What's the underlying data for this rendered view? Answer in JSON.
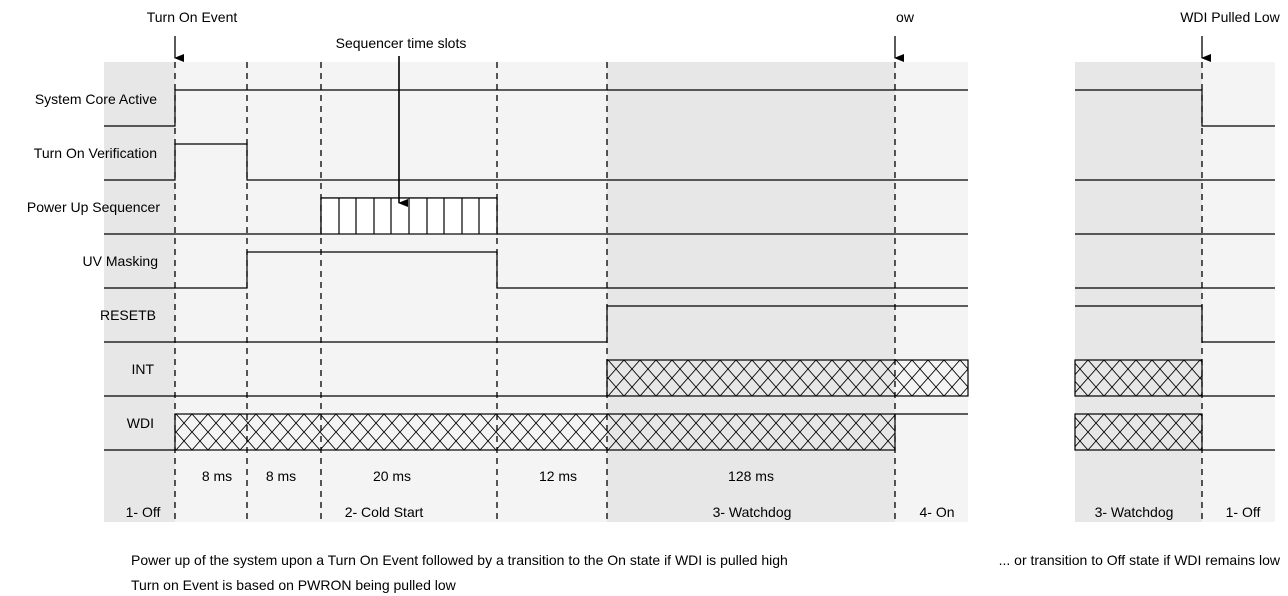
{
  "colors": {
    "line": "#000000",
    "shade_light": "#f2f2f2",
    "shade_dark": "#e6e6e6",
    "background": "#ffffff"
  },
  "events": {
    "turn_on": "Turn On Event",
    "wdi_high": "ow",
    "wdi_low": "WDI Pulled Low",
    "sequencer": "Sequencer time slots"
  },
  "signals": [
    {
      "name": "System Core Active"
    },
    {
      "name": "Turn On Verification"
    },
    {
      "name": "Power Up Sequencer"
    },
    {
      "name": "UV Masking"
    },
    {
      "name": "RESETB"
    },
    {
      "name": "INT"
    },
    {
      "name": "WDI"
    }
  ],
  "durations": [
    "8 ms",
    "8 ms",
    "20 ms",
    "12 ms",
    "128 ms"
  ],
  "states": [
    "1- Off",
    "2-  Cold Start",
    "3-  Watchdog",
    "4- On",
    "3- Watchdog",
    "1- Off"
  ],
  "captions": {
    "line1": "Power up of the system upon a Turn On Event  followed by a transition to the On state if WDI is pulled high",
    "line1_right": "... or transition to Off state if WDI remains low",
    "line2": "Turn on Event is based on PWRON being pulled low"
  }
}
